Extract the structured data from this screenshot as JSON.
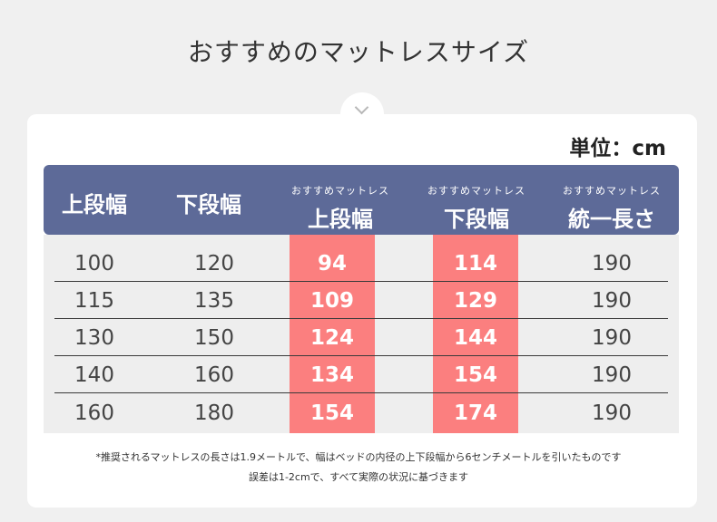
{
  "title": "おすすめのマットレスサイズ",
  "unit": "単位：cm",
  "header": {
    "col1": "上段幅",
    "col2": "下段幅",
    "col3_small": "おすすめマットレス",
    "col3": "上段幅",
    "col4_small": "おすすめマットレス",
    "col4": "下段幅",
    "col5_small": "おすすめマットレス",
    "col5": "統一長さ"
  },
  "rows": [
    {
      "upper": "100",
      "lower": "120",
      "rec_upper": "94",
      "rec_lower": "114",
      "length": "190"
    },
    {
      "upper": "115",
      "lower": "135",
      "rec_upper": "109",
      "rec_lower": "129",
      "length": "190"
    },
    {
      "upper": "130",
      "lower": "150",
      "rec_upper": "124",
      "rec_lower": "144",
      "length": "190"
    },
    {
      "upper": "140",
      "lower": "160",
      "rec_upper": "134",
      "rec_lower": "154",
      "length": "190"
    },
    {
      "upper": "160",
      "lower": "180",
      "rec_upper": "154",
      "rec_lower": "174",
      "length": "190"
    }
  ],
  "notes": {
    "line1": "*推奨されるマットレスの長さは1.9メートルで、幅はベッドの内径の上下段幅から6センチメートルを引いたものです",
    "line2": "誤差は1-2cmで、すべて実際の状況に基づきます"
  },
  "colors": {
    "header_bg": "#5d6a98",
    "highlight": "#fb7f7f"
  }
}
